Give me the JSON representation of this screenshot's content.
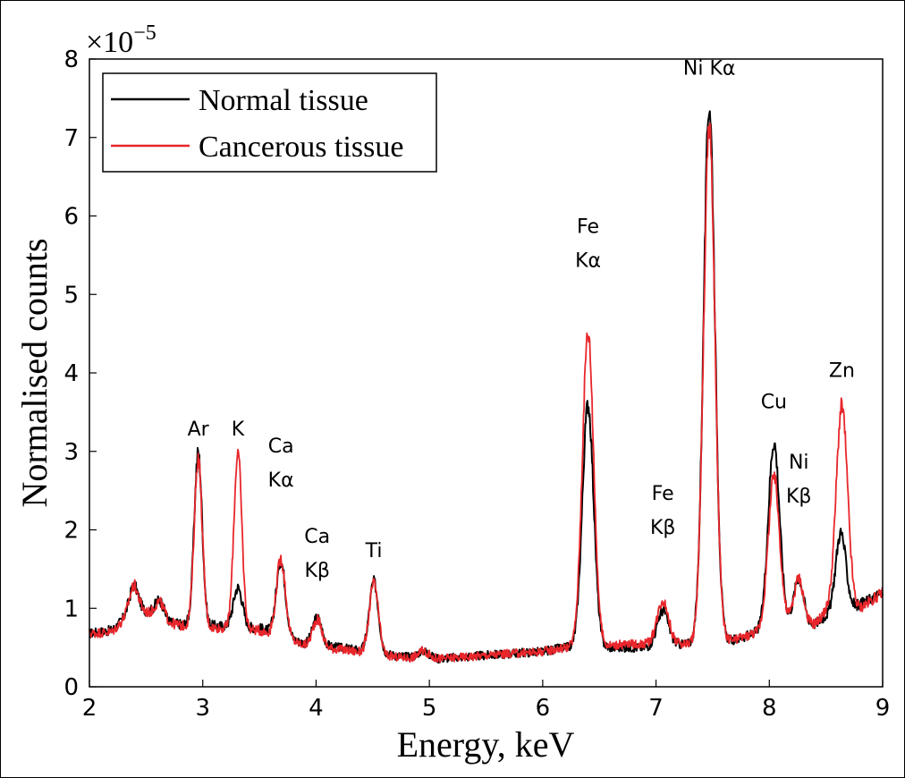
{
  "chart_data": {
    "type": "line",
    "xlabel": "Energy, keV",
    "ylabel": "Normalised counts",
    "y_multiplier": "×10",
    "y_exponent": "−5",
    "xlim": [
      2,
      9
    ],
    "ylim": [
      0,
      8
    ],
    "xticks": [
      "2",
      "3",
      "4",
      "5",
      "6",
      "7",
      "8",
      "9"
    ],
    "yticks": [
      "0",
      "1",
      "2",
      "3",
      "4",
      "5",
      "6",
      "7",
      "8"
    ],
    "grid": false,
    "legend_position": "top-left",
    "series": [
      {
        "name": "Normal tissue",
        "color": "#000000",
        "baseline": [
          [
            2.0,
            0.68
          ],
          [
            2.2,
            0.72
          ],
          [
            2.4,
            1.0
          ],
          [
            2.6,
            0.92
          ],
          [
            2.7,
            0.82
          ],
          [
            2.8,
            0.8
          ],
          [
            3.5,
            0.75
          ],
          [
            3.9,
            0.55
          ],
          [
            4.2,
            0.5
          ],
          [
            4.7,
            0.4
          ],
          [
            5.0,
            0.35
          ],
          [
            5.5,
            0.4
          ],
          [
            6.0,
            0.45
          ],
          [
            6.2,
            0.5
          ],
          [
            6.9,
            0.5
          ],
          [
            7.3,
            0.55
          ],
          [
            7.7,
            0.6
          ],
          [
            8.2,
            0.85
          ],
          [
            8.4,
            0.8
          ],
          [
            8.5,
            0.9
          ],
          [
            8.8,
            1.05
          ],
          [
            9.0,
            1.2
          ]
        ],
        "peaks": [
          {
            "center": 2.39,
            "height": 0.3,
            "width": 0.04
          },
          {
            "center": 2.62,
            "height": 0.2,
            "width": 0.04
          },
          {
            "center": 2.96,
            "height": 2.2,
            "width": 0.035
          },
          {
            "center": 3.31,
            "height": 0.5,
            "width": 0.04
          },
          {
            "center": 3.69,
            "height": 0.95,
            "width": 0.04
          },
          {
            "center": 4.01,
            "height": 0.35,
            "width": 0.04
          },
          {
            "center": 4.51,
            "height": 0.9,
            "width": 0.04
          },
          {
            "center": 4.95,
            "height": 0.1,
            "width": 0.05
          },
          {
            "center": 6.4,
            "height": 3.1,
            "width": 0.05
          },
          {
            "center": 7.06,
            "height": 0.45,
            "width": 0.05
          },
          {
            "center": 7.47,
            "height": 6.85,
            "width": 0.05
          },
          {
            "center": 8.04,
            "height": 2.35,
            "width": 0.05
          },
          {
            "center": 8.26,
            "height": 0.55,
            "width": 0.04
          },
          {
            "center": 8.63,
            "height": 1.0,
            "width": 0.045
          }
        ]
      },
      {
        "name": "Cancerous tissue",
        "color": "#e8262b",
        "baseline": [
          [
            2.0,
            0.68
          ],
          [
            2.2,
            0.7
          ],
          [
            2.4,
            1.0
          ],
          [
            2.6,
            0.9
          ],
          [
            2.7,
            0.82
          ],
          [
            2.8,
            0.78
          ],
          [
            3.5,
            0.72
          ],
          [
            3.9,
            0.53
          ],
          [
            4.2,
            0.48
          ],
          [
            4.7,
            0.38
          ],
          [
            5.0,
            0.35
          ],
          [
            5.5,
            0.4
          ],
          [
            6.0,
            0.45
          ],
          [
            6.2,
            0.5
          ],
          [
            6.9,
            0.55
          ],
          [
            7.3,
            0.55
          ],
          [
            7.7,
            0.6
          ],
          [
            8.2,
            0.85
          ],
          [
            8.4,
            0.8
          ],
          [
            8.5,
            0.95
          ],
          [
            8.8,
            1.0
          ],
          [
            9.0,
            1.2
          ]
        ],
        "peaks": [
          {
            "center": 2.39,
            "height": 0.3,
            "width": 0.04
          },
          {
            "center": 2.62,
            "height": 0.2,
            "width": 0.04
          },
          {
            "center": 2.96,
            "height": 2.15,
            "width": 0.035
          },
          {
            "center": 3.31,
            "height": 2.25,
            "width": 0.035
          },
          {
            "center": 3.69,
            "height": 1.0,
            "width": 0.04
          },
          {
            "center": 4.01,
            "height": 0.35,
            "width": 0.04
          },
          {
            "center": 4.51,
            "height": 0.9,
            "width": 0.04
          },
          {
            "center": 4.95,
            "height": 0.1,
            "width": 0.05
          },
          {
            "center": 6.4,
            "height": 4.0,
            "width": 0.05
          },
          {
            "center": 7.06,
            "height": 0.55,
            "width": 0.05
          },
          {
            "center": 7.47,
            "height": 6.55,
            "width": 0.05
          },
          {
            "center": 8.04,
            "height": 1.9,
            "width": 0.05
          },
          {
            "center": 8.26,
            "height": 0.55,
            "width": 0.04
          },
          {
            "center": 8.64,
            "height": 2.6,
            "width": 0.05
          }
        ]
      }
    ],
    "annotations": [
      {
        "lines": [
          "Ar"
        ],
        "x": 2.96,
        "y": 3.2
      },
      {
        "lines": [
          "K"
        ],
        "x": 3.31,
        "y": 3.2
      },
      {
        "lines": [
          "Ca",
          "Kα"
        ],
        "x": 3.69,
        "y": 2.55
      },
      {
        "lines": [
          "Ca",
          "Kβ"
        ],
        "x": 4.01,
        "y": 1.4
      },
      {
        "lines": [
          "Ti"
        ],
        "x": 4.51,
        "y": 1.65
      },
      {
        "lines": [
          "Fe",
          "Kα"
        ],
        "x": 6.4,
        "y": 5.35
      },
      {
        "lines": [
          "Fe",
          "Kβ"
        ],
        "x": 7.06,
        "y": 1.95
      },
      {
        "lines": [
          "Ni Kα"
        ],
        "x": 7.47,
        "y": 7.8
      },
      {
        "lines": [
          "Cu"
        ],
        "x": 8.04,
        "y": 3.55
      },
      {
        "lines": [
          "Ni",
          "Kβ"
        ],
        "x": 8.26,
        "y": 2.35
      },
      {
        "lines": [
          "Zn"
        ],
        "x": 8.64,
        "y": 3.95
      }
    ]
  }
}
